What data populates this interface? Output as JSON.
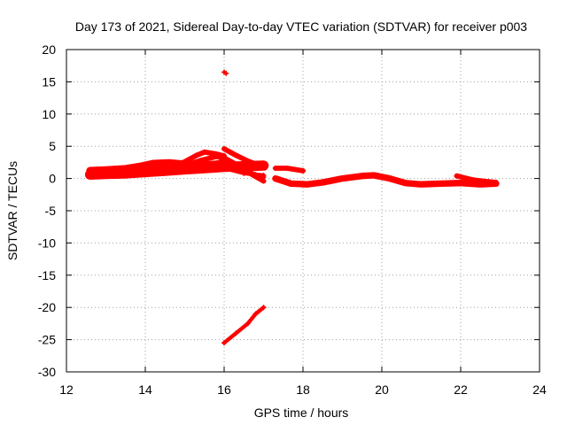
{
  "chart_data": {
    "type": "scatter",
    "title": "Day 173 of 2021, Sidereal Day-to-day VTEC variation (SDTVAR) for receiver p003",
    "xlabel": "GPS time / hours",
    "ylabel": "SDTVAR / TECUs",
    "xlim": [
      12,
      24
    ],
    "ylim": [
      -30,
      20
    ],
    "xticks": [
      12,
      14,
      16,
      18,
      20,
      22,
      24
    ],
    "yticks": [
      20,
      15,
      10,
      5,
      0,
      -5,
      -10,
      -15,
      -20,
      -25,
      -30
    ],
    "grid": true,
    "legend": "none",
    "color": "#ff0000",
    "series": [
      {
        "name": "track-main-lower",
        "thickness": 1.6,
        "points": [
          [
            12.6,
            0.6
          ],
          [
            13.0,
            0.7
          ],
          [
            13.5,
            0.8
          ],
          [
            14.0,
            1.0
          ],
          [
            14.5,
            1.2
          ],
          [
            15.0,
            1.4
          ],
          [
            15.5,
            1.6
          ],
          [
            16.0,
            1.8
          ],
          [
            16.5,
            1.9
          ],
          [
            17.0,
            2.0
          ]
        ]
      },
      {
        "name": "track-main-band",
        "thickness": 1.2,
        "points": [
          [
            12.6,
            1.2
          ],
          [
            13.0,
            1.3
          ],
          [
            13.5,
            1.5
          ],
          [
            13.9,
            1.9
          ],
          [
            14.2,
            2.3
          ],
          [
            14.6,
            2.4
          ],
          [
            15.0,
            2.2
          ],
          [
            15.4,
            2.0
          ],
          [
            15.8,
            2.2
          ],
          [
            16.0,
            2.4
          ]
        ]
      },
      {
        "name": "track-rise-a",
        "thickness": 0.8,
        "points": [
          [
            14.0,
            0.9
          ],
          [
            14.5,
            1.6
          ],
          [
            15.0,
            2.6
          ],
          [
            15.3,
            3.6
          ],
          [
            15.5,
            4.1
          ],
          [
            15.8,
            3.8
          ],
          [
            16.0,
            3.5
          ]
        ]
      },
      {
        "name": "track-rise-b",
        "thickness": 0.8,
        "points": [
          [
            15.0,
            2.0
          ],
          [
            15.4,
            2.8
          ],
          [
            15.8,
            3.4
          ],
          [
            16.0,
            3.2
          ]
        ]
      },
      {
        "name": "track-fall-a",
        "thickness": 0.8,
        "points": [
          [
            16.0,
            4.6
          ],
          [
            16.3,
            3.6
          ],
          [
            16.6,
            2.7
          ],
          [
            17.0,
            1.8
          ]
        ]
      },
      {
        "name": "track-fall-b",
        "thickness": 0.8,
        "points": [
          [
            16.0,
            3.2
          ],
          [
            16.3,
            2.2
          ],
          [
            16.6,
            1.0
          ],
          [
            17.0,
            -0.4
          ]
        ]
      },
      {
        "name": "track-fall-c",
        "thickness": 0.6,
        "points": [
          [
            16.2,
            2.0
          ],
          [
            16.5,
            1.4
          ],
          [
            16.8,
            0.6
          ],
          [
            17.0,
            0.2
          ]
        ]
      },
      {
        "name": "track-fall-d",
        "thickness": 0.6,
        "points": [
          [
            16.0,
            1.6
          ],
          [
            16.5,
            0.8
          ],
          [
            17.0,
            0.5
          ]
        ]
      },
      {
        "name": "track-right-upper",
        "thickness": 0.8,
        "points": [
          [
            17.3,
            1.6
          ],
          [
            17.6,
            1.6
          ],
          [
            18.0,
            1.2
          ]
        ]
      },
      {
        "name": "track-right-main",
        "thickness": 1.0,
        "points": [
          [
            17.3,
            0.0
          ],
          [
            17.7,
            -0.8
          ],
          [
            18.1,
            -0.9
          ],
          [
            18.5,
            -0.6
          ],
          [
            19.0,
            0.0
          ],
          [
            19.5,
            0.4
          ],
          [
            19.8,
            0.5
          ],
          [
            20.2,
            0.0
          ],
          [
            20.6,
            -0.7
          ],
          [
            21.0,
            -0.9
          ],
          [
            21.5,
            -0.8
          ],
          [
            22.0,
            -0.7
          ],
          [
            22.5,
            -0.9
          ],
          [
            22.9,
            -0.8
          ]
        ]
      },
      {
        "name": "track-right-end",
        "thickness": 0.8,
        "points": [
          [
            21.9,
            0.4
          ],
          [
            22.3,
            -0.2
          ],
          [
            22.7,
            -0.5
          ],
          [
            22.9,
            -0.6
          ]
        ]
      },
      {
        "name": "track-negative",
        "thickness": 0.6,
        "points": [
          [
            16.0,
            -25.5
          ],
          [
            16.3,
            -24.0
          ],
          [
            16.6,
            -22.5
          ],
          [
            16.8,
            -21.0
          ],
          [
            17.0,
            -20.0
          ]
        ]
      },
      {
        "name": "track-outlier",
        "thickness": 0.5,
        "points": [
          [
            16.0,
            16.5
          ],
          [
            16.05,
            16.3
          ]
        ]
      }
    ]
  }
}
